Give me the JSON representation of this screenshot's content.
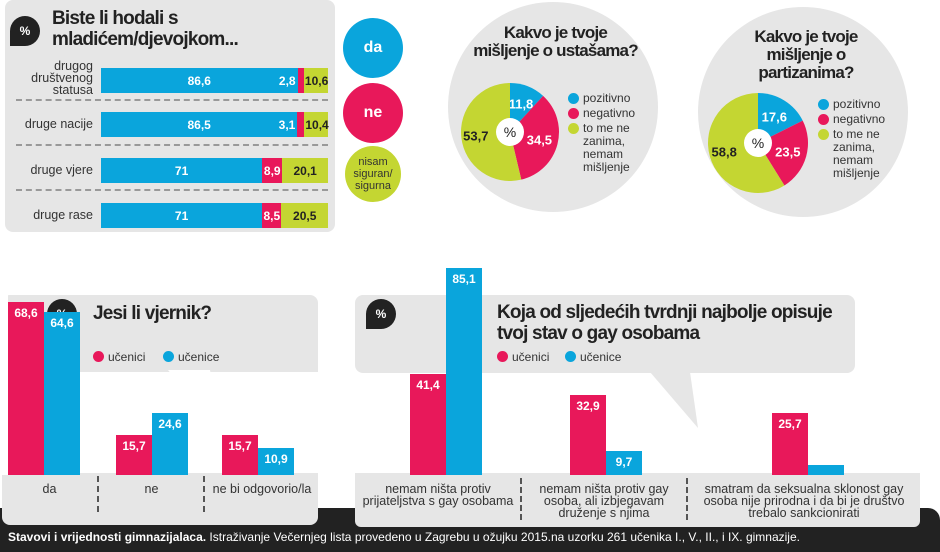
{
  "colors": {
    "blue": "#0aa5dc",
    "pink": "#e8185a",
    "lime": "#c4d632",
    "grey": "#e6e6e6",
    "dark": "#222222"
  },
  "chart_data": [
    {
      "type": "bar",
      "orientation": "horizontal",
      "stacked": true,
      "title": "Biste li hodali s mladićem/djevojkom...",
      "unit": "%",
      "categories": [
        "drugog društvenog statusa",
        "druge nacije",
        "druge vjere",
        "druge rase"
      ],
      "series": [
        {
          "name": "da",
          "values": [
            86.6,
            86.5,
            71,
            71
          ],
          "labels": [
            "86,6",
            "86,5",
            "71",
            "71"
          ]
        },
        {
          "name": "ne",
          "values": [
            2.8,
            3.1,
            8.9,
            8.5
          ],
          "labels": [
            "2,8",
            "3,1",
            "8,9",
            "8,5"
          ]
        },
        {
          "name": "nisam siguran/ sigurna",
          "values": [
            10.6,
            10.4,
            20.1,
            20.5
          ],
          "labels": [
            "10,6",
            "10,4",
            "20,1",
            "20,5"
          ]
        }
      ]
    },
    {
      "type": "pie",
      "title": "Kakvo je tvoje mišljenje o ustašama?",
      "center_label": "%",
      "categories": [
        "pozitivno",
        "negativno",
        "to me ne zanima, nemam mišljenje"
      ],
      "values": [
        11.8,
        34.5,
        53.7
      ],
      "labels": [
        "11,8",
        "34,5",
        "53,7"
      ]
    },
    {
      "type": "pie",
      "title": "Kakvo je tvoje mišljenje o partizanima?",
      "center_label": "%",
      "categories": [
        "pozitivno",
        "negativno",
        "to me ne zanima, nemam mišljenje"
      ],
      "values": [
        17.6,
        23.5,
        58.8
      ],
      "labels": [
        "17,6",
        "23,5",
        "58,8"
      ]
    },
    {
      "type": "bar",
      "title": "Jesi li vjernik?",
      "unit": "%",
      "categories": [
        "da",
        "ne",
        "ne bi odgovorio/la"
      ],
      "series": [
        {
          "name": "učenici",
          "values": [
            68.6,
            15.7,
            15.7
          ],
          "labels": [
            "68,6",
            "15,7",
            "15,7"
          ]
        },
        {
          "name": "učenice",
          "values": [
            64.6,
            24.6,
            10.9
          ],
          "labels": [
            "64,6",
            "24,6",
            "10,9"
          ]
        }
      ]
    },
    {
      "type": "bar",
      "title": "Koja od sljedećih tvrdnji najbolje opisuje tvoj stav o gay osobama",
      "unit": "%",
      "categories": [
        "nemam ništa protiv prijateljstva s gay osobama",
        "nemam ništa protiv gay osoba, ali izbjegavam druženje s njima",
        "smatram da seksualna sklonost gay osoba nije prirodna i da bi je društvo trebalo sankcionirati"
      ],
      "series": [
        {
          "name": "učenici",
          "values": [
            41.4,
            32.9,
            25.7
          ],
          "labels": [
            "41,4",
            "32,9",
            "25,7"
          ]
        },
        {
          "name": "učenice",
          "values": [
            85.1,
            9.7,
            4.3
          ],
          "labels": [
            "85,1",
            "9,7",
            ""
          ]
        }
      ]
    }
  ],
  "footer": {
    "bold": "Stavovi i vrijednosti gimnazijalaca.",
    "text": " Istraživanje Večernjeg lista provedeno u Zagrebu u ožujku 2015.na uzorku 261 učenika I., V., II., i IX. gimnazije."
  },
  "badge": "%"
}
